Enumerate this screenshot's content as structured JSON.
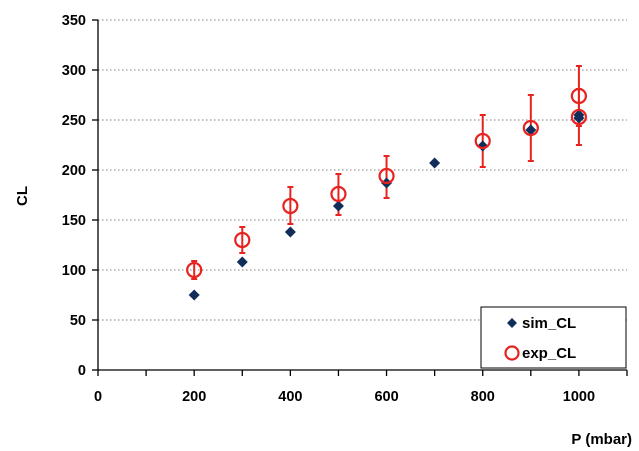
{
  "chart_data": {
    "type": "scatter",
    "title": "",
    "xlabel": "P (mbar)",
    "ylabel": "CL",
    "xlim": [
      0,
      1100
    ],
    "ylim": [
      0,
      350
    ],
    "xticks": [
      0,
      200,
      400,
      600,
      800,
      1000
    ],
    "yticks": [
      0,
      50,
      100,
      150,
      200,
      250,
      300,
      350
    ],
    "grid": "horizontal dotted",
    "legend_position": "bottom-right",
    "series": [
      {
        "name": "sim_CL",
        "marker": "diamond",
        "color": "#132d5a",
        "x": [
          200,
          300,
          400,
          500,
          600,
          700,
          800,
          900,
          1000,
          1000
        ],
        "y": [
          75,
          108,
          138,
          164,
          187,
          207,
          224,
          240,
          252,
          255
        ]
      },
      {
        "name": "exp_CL",
        "marker": "open-circle",
        "color": "#e8231f",
        "x": [
          200,
          300,
          400,
          500,
          600,
          800,
          900,
          1000,
          1000
        ],
        "y": [
          100,
          130,
          164,
          176,
          194,
          229,
          242,
          253,
          274
        ],
        "err_low": [
          91,
          117,
          146,
          155,
          172,
          203,
          209,
          225,
          244
        ],
        "err_high": [
          109,
          143,
          183,
          196,
          214,
          255,
          275,
          281,
          304
        ]
      }
    ]
  }
}
